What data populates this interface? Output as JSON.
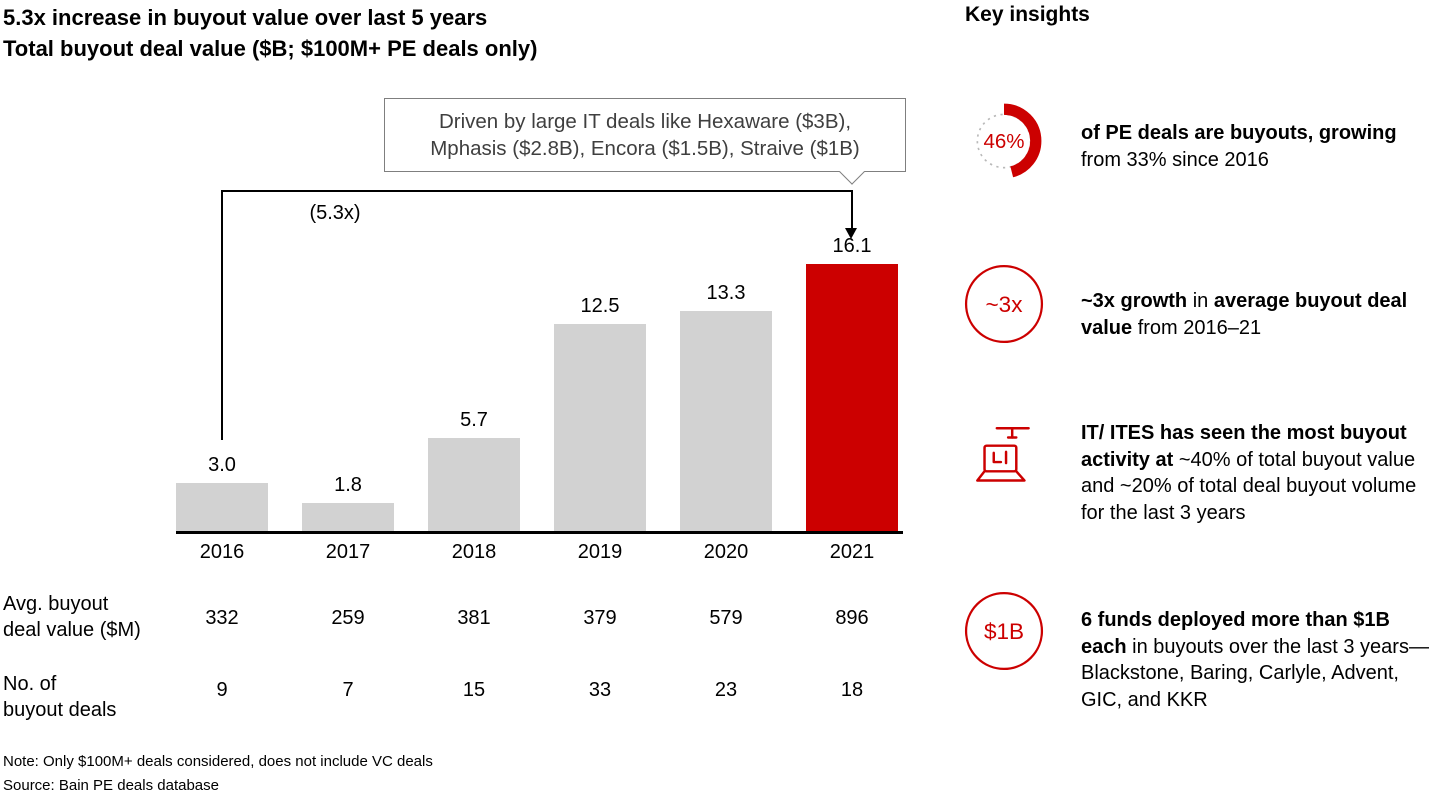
{
  "colors": {
    "accent": "#cc0000",
    "bar_gray": "#d2d2d2",
    "callout_border": "#7f7f7f",
    "dotted_gray": "#b9b9b9"
  },
  "header": {
    "title": "5.3x increase in buyout value over last 5 years",
    "subtitle": "Total buyout deal value ($B; $100M+ PE deals only)"
  },
  "chart_data": {
    "type": "bar",
    "title": "Total buyout deal value ($B; $100M+ PE deals only)",
    "categories": [
      "2016",
      "2017",
      "2018",
      "2019",
      "2020",
      "2021"
    ],
    "values": [
      3.0,
      1.8,
      5.7,
      12.5,
      13.3,
      16.1
    ],
    "value_labels": [
      "3.0",
      "1.8",
      "5.7",
      "12.5",
      "13.3",
      "16.1"
    ],
    "highlight_index": 5,
    "highlight_color": "#cc0000",
    "bar_color": "#d2d2d2",
    "growth_label": "(5.3x)",
    "ylim": [
      0,
      16.1
    ],
    "grid": false,
    "legend": false,
    "callout": {
      "line1": "Driven by large IT deals like Hexaware ($3B),",
      "line2": "Mphasis ($2.8B), Encora ($1.5B), Straive ($1B)"
    }
  },
  "table": {
    "rows": [
      {
        "label_line1": "Avg. buyout",
        "label_line2": "deal value ($M)",
        "values": [
          "332",
          "259",
          "381",
          "379",
          "579",
          "896"
        ]
      },
      {
        "label_line1": "No. of",
        "label_line2": "buyout deals",
        "values": [
          "9",
          "7",
          "15",
          "33",
          "23",
          "18"
        ]
      }
    ]
  },
  "footer": {
    "note": "Note: Only $100M+ deals considered, does not include VC deals",
    "source": "Source: Bain PE deals database"
  },
  "insights": {
    "title": "Key insights",
    "items": [
      {
        "icon": "donut-46-icon",
        "badge": "46%",
        "pct": 46,
        "segments": [
          {
            "text": "of PE deals are buyouts, growing",
            "bold": true
          },
          {
            "text": " from 33% since 2016",
            "bold": false
          }
        ]
      },
      {
        "icon": "circle-3x-icon",
        "badge": "~3x",
        "segments": [
          {
            "text": "~3x growth",
            "bold": true
          },
          {
            "text": " in ",
            "bold": false
          },
          {
            "text": "average buyout deal value",
            "bold": true
          },
          {
            "text": " from 2016–21",
            "bold": false
          }
        ]
      },
      {
        "icon": "it-laptop-icon",
        "badge": "",
        "segments": [
          {
            "text": "IT/ ITES has seen the most buyout activity at ",
            "bold": true
          },
          {
            "text": "~40% of total buyout value and ~20% of total deal buyout volume for the last 3 years",
            "bold": false
          }
        ]
      },
      {
        "icon": "circle-1b-icon",
        "badge": "$1B",
        "segments": [
          {
            "text": "6 funds deployed more than $1B each",
            "bold": true
          },
          {
            "text": " in buyouts over the last 3 years—Blackstone, Baring, Carlyle, Advent, GIC, and KKR",
            "bold": false
          }
        ]
      }
    ]
  }
}
